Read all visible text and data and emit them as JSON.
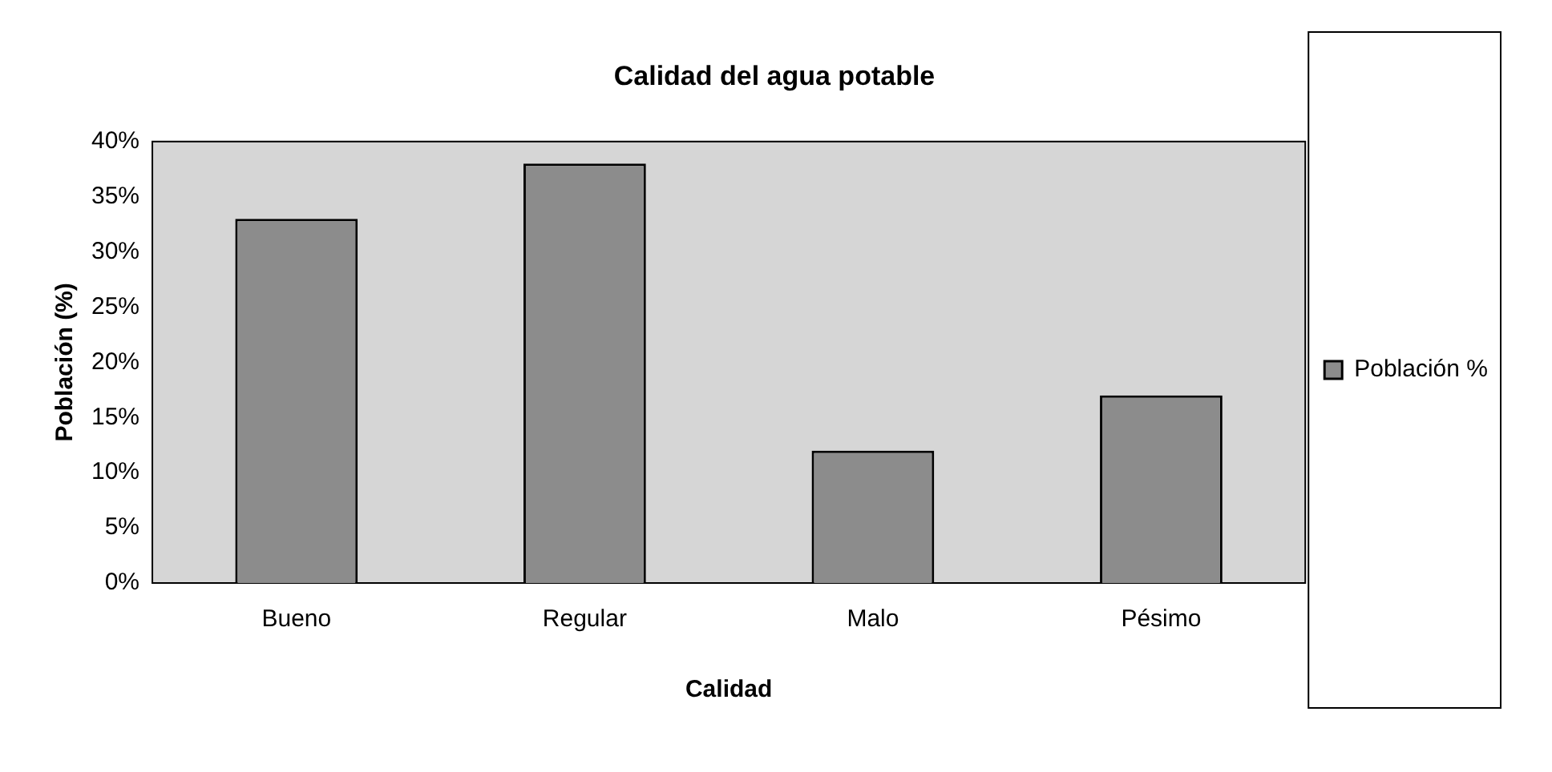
{
  "chart_data": {
    "type": "bar",
    "title": "Calidad del agua potable",
    "xlabel": "Calidad",
    "ylabel": "Población (%)",
    "categories": [
      "Bueno",
      "Regular",
      "Malo",
      "Pésimo"
    ],
    "series": [
      {
        "name": "Población %",
        "color": "#8c8c8c",
        "values": [
          33,
          38,
          12,
          17
        ]
      }
    ],
    "ylim": [
      0,
      40
    ],
    "yticks": [
      {
        "value": 0,
        "label": "0%"
      },
      {
        "value": 5,
        "label": "5%"
      },
      {
        "value": 10,
        "label": "10%"
      },
      {
        "value": 15,
        "label": "15%"
      },
      {
        "value": 20,
        "label": "20%"
      },
      {
        "value": 25,
        "label": "25%"
      },
      {
        "value": 30,
        "label": "30%"
      },
      {
        "value": 35,
        "label": "35%"
      },
      {
        "value": 40,
        "label": "40%"
      }
    ],
    "grid": false,
    "legend": "right"
  }
}
